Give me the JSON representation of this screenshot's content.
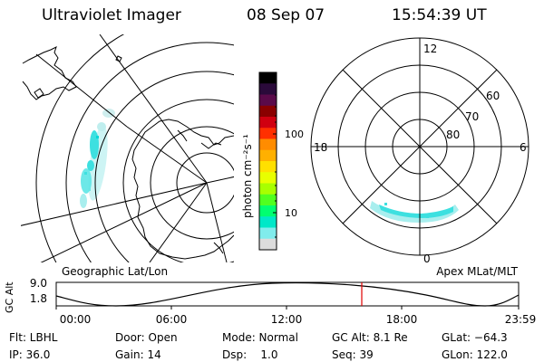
{
  "header": {
    "title": "Ultraviolet Imager",
    "date": "08 Sep 07",
    "time": "15:54:39 UT"
  },
  "colorbar": {
    "label": "photon cm⁻²s⁻¹",
    "ticks": [
      "100",
      "10"
    ],
    "colors": [
      "#000000",
      "#2a0a3a",
      "#5a0a4a",
      "#8a0000",
      "#d00010",
      "#ff3000",
      "#ff8c00",
      "#ffb000",
      "#ffe000",
      "#e8ff00",
      "#a8ff00",
      "#50ff20",
      "#00ff70",
      "#00e8c8",
      "#80ecec",
      "#dcdcdc"
    ]
  },
  "polar_plot": {
    "mlt_labels": [
      "12",
      "18",
      "6",
      "0"
    ],
    "lat_labels": [
      "60",
      "70",
      "80"
    ]
  },
  "panel_labels": {
    "left": "Geographic Lat/Lon",
    "right": "Apex MLat/MLT"
  },
  "altitude_plot": {
    "ylabel": "GC Alt",
    "yticks": [
      "9.0",
      "1.8"
    ],
    "xticks": [
      "00:00",
      "06:00",
      "12:00",
      "18:00",
      "23:59"
    ],
    "marker_color": "#e00000"
  },
  "info": {
    "flt": "Flt: LBHL",
    "door": "Door: Open",
    "mode": "Mode: Normal",
    "gc_alt": "GC Alt: 8.1 Re",
    "glat": "GLat: −64.3",
    "ip": "IP: 36.0",
    "gain": "Gain: 14",
    "dsp": "Dsp:    1.0",
    "seq": "Seq: 39",
    "glon": "GLon: 122.0"
  },
  "colors": {
    "aurora": "#3de0e0",
    "aurora_light": "#a8eeee"
  }
}
